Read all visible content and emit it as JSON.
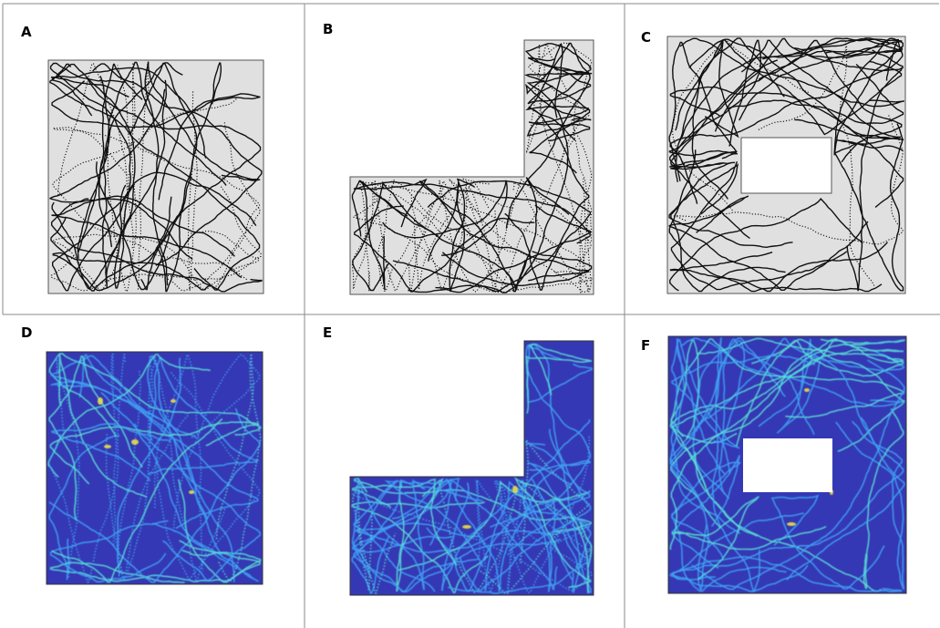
{
  "figure": {
    "panels": [
      {
        "id": "A",
        "label": "A",
        "kind": "trajectory",
        "arena": "square"
      },
      {
        "id": "B",
        "label": "B",
        "kind": "trajectory",
        "arena": "l-shape"
      },
      {
        "id": "C",
        "label": "C",
        "kind": "trajectory",
        "arena": "square-with-hole"
      },
      {
        "id": "D",
        "label": "D",
        "kind": "heatmap",
        "arena": "square"
      },
      {
        "id": "E",
        "label": "E",
        "kind": "heatmap",
        "arena": "l-shape"
      },
      {
        "id": "F",
        "label": "F",
        "kind": "heatmap",
        "arena": "square-with-hole"
      }
    ],
    "colors": {
      "arena_fill": "#e0e0e0",
      "trajectory": "#111111",
      "heatmap_background": "#3538b4",
      "heatmap_low": "#3fa3f5",
      "heatmap_mid": "#59e0d8",
      "heatmap_high": "#e8e045",
      "grid_lines": "#8a8a8a"
    }
  }
}
